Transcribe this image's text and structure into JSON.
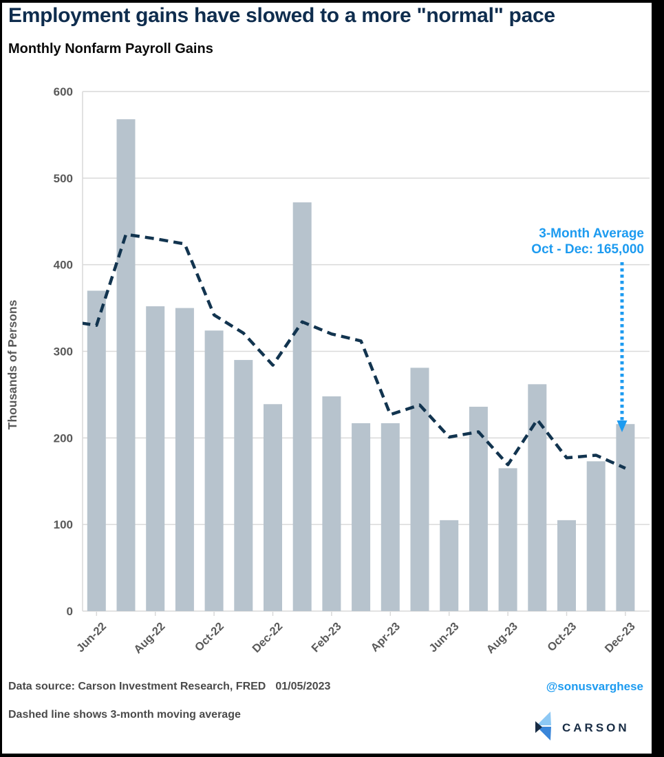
{
  "header": {
    "title": "Employment gains have slowed to a more \"normal\" pace",
    "subtitle": "Monthly Nonfarm Payroll Gains"
  },
  "chart_data": {
    "type": "bar",
    "title": "Monthly Nonfarm Payroll Gains",
    "xlabel": "",
    "ylabel": "Thousands of Persons",
    "ylim": [
      0,
      600
    ],
    "yticks": [
      0,
      100,
      200,
      300,
      400,
      500,
      600
    ],
    "grid": true,
    "legend": "none",
    "categories": [
      "Jun-22",
      "Jul-22",
      "Aug-22",
      "Sep-22",
      "Oct-22",
      "Nov-22",
      "Dec-22",
      "Jan-23",
      "Feb-23",
      "Mar-23",
      "Apr-23",
      "May-23",
      "Jun-23",
      "Jul-23",
      "Aug-23",
      "Sep-23",
      "Oct-23",
      "Nov-23",
      "Dec-23"
    ],
    "xtick_labels_shown": [
      "Jun-22",
      "Aug-22",
      "Oct-22",
      "Dec-22",
      "Feb-23",
      "Apr-23",
      "Jun-23",
      "Aug-23",
      "Oct-23",
      "Dec-23"
    ],
    "series": [
      {
        "name": "Monthly Nonfarm Payroll Gains",
        "type": "bar",
        "color": "#b7c3cd",
        "values": [
          370,
          568,
          352,
          350,
          324,
          290,
          239,
          472,
          248,
          217,
          217,
          281,
          105,
          236,
          165,
          262,
          105,
          173,
          216
        ]
      },
      {
        "name": "3-month moving average",
        "type": "line",
        "style": "dashed",
        "color": "#12344f",
        "lead_in_value": 335,
        "values": [
          330,
          435,
          430,
          424,
          342,
          321,
          284,
          334,
          320,
          312,
          227,
          238,
          201,
          207,
          169,
          221,
          177,
          180,
          165
        ]
      }
    ],
    "annotation": {
      "line1": "3-Month Average",
      "line2": "Oct - Dec: 165,000",
      "color": "#1d9bf0",
      "arrow": "dotted-down-arrow",
      "points_to": "Dec-23"
    }
  },
  "footer": {
    "data_source": "Data source: Carson Investment Research, FRED",
    "date": "01/05/2023",
    "handle": "@sonusvarghese",
    "note": "Dashed line shows 3-month moving average",
    "logo_text": "CARSON"
  },
  "colors": {
    "title": "#0f2d4e",
    "accent_blue": "#1d9bf0",
    "bar": "#b7c3cd",
    "ma_line": "#12344f",
    "grid": "#d9d9d9",
    "tick_text": "#595959",
    "footer_text": "#4a4a4a",
    "logo_navy": "#182c44",
    "logo_light_blue": "#8dc8f4",
    "logo_mid_blue": "#3a86d9"
  }
}
